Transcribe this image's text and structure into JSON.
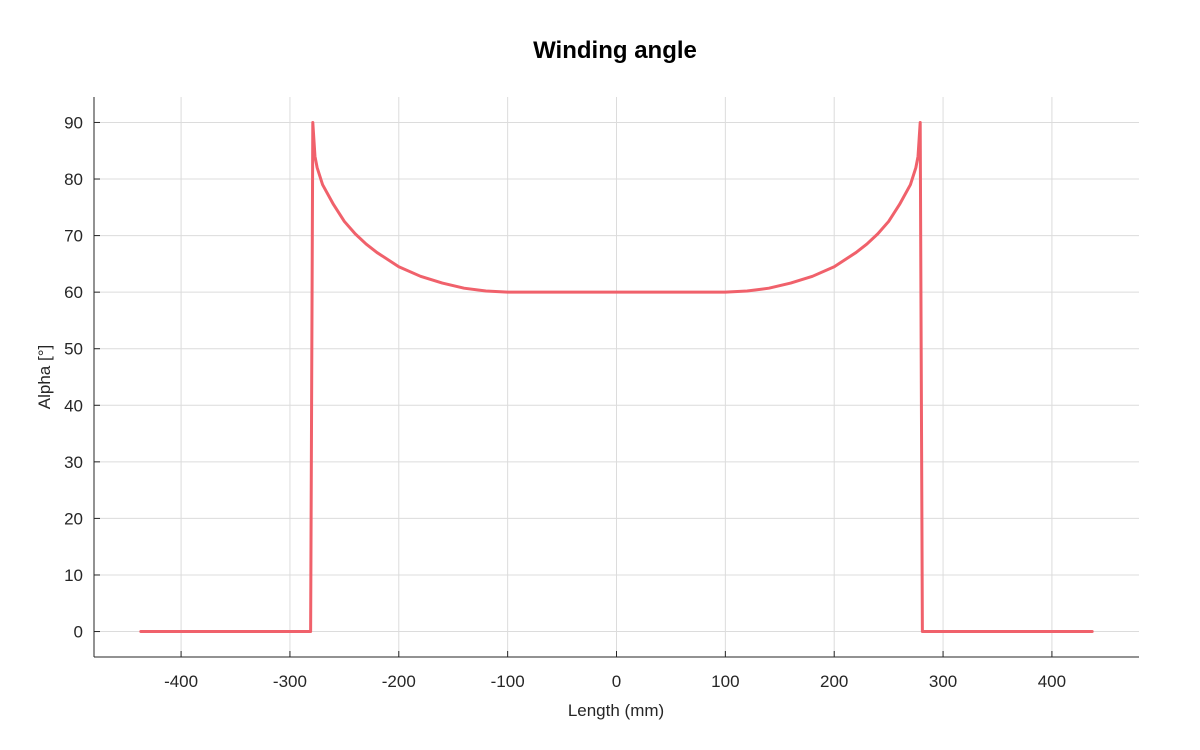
{
  "chart_data": {
    "type": "line",
    "title": "Winding angle",
    "xlabel": "Length (mm)",
    "ylabel": "Alpha [°]",
    "xlim": [
      -480,
      480
    ],
    "ylim": [
      -4.5,
      94.5
    ],
    "xticks": [
      -400,
      -300,
      -200,
      -100,
      0,
      100,
      200,
      300,
      400
    ],
    "yticks": [
      0,
      10,
      20,
      30,
      40,
      50,
      60,
      70,
      80,
      90
    ],
    "grid": true,
    "line_color": "#f0616b",
    "series": [
      {
        "x": [
          -437,
          -281,
          -279,
          -278,
          -277,
          -275,
          -270,
          -260,
          -250,
          -240,
          -230,
          -220,
          -200,
          -180,
          -160,
          -140,
          -120,
          -100,
          0,
          100,
          120,
          140,
          160,
          180,
          200,
          220,
          230,
          240,
          250,
          260,
          270,
          275,
          277,
          278,
          279,
          281,
          437
        ],
        "values": [
          0,
          0,
          90,
          87,
          84,
          82,
          79,
          75.5,
          72.5,
          70.3,
          68.5,
          67,
          64.5,
          62.8,
          61.6,
          60.7,
          60.2,
          60,
          60,
          60,
          60.2,
          60.7,
          61.6,
          62.8,
          64.5,
          67,
          68.5,
          70.3,
          72.5,
          75.5,
          79,
          82,
          84,
          87,
          90,
          0,
          0
        ]
      }
    ]
  }
}
